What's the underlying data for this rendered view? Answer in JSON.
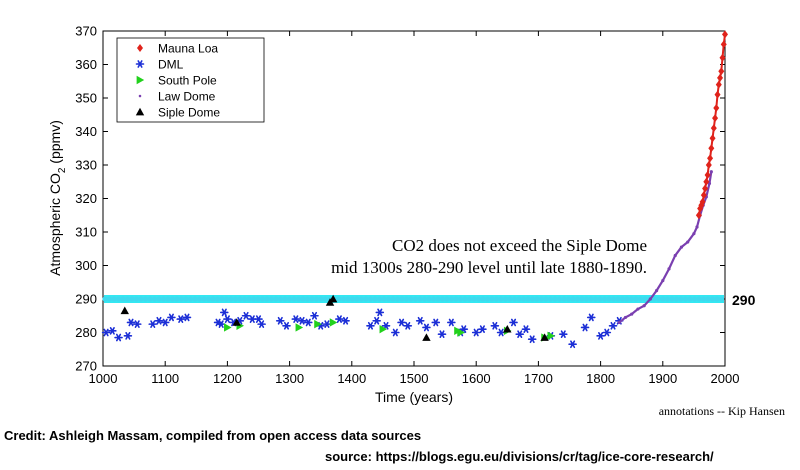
{
  "chart_data": {
    "type": "scatter",
    "ylabel": "Atmospheric CO",
    "ylabel_subscript": "2",
    "ylabel_suffix": " (ppmv)",
    "xlabel": "Time (years)",
    "xlim": [
      1000,
      2000
    ],
    "ylim": [
      270,
      370
    ],
    "xticks": [
      1000,
      1100,
      1200,
      1300,
      1400,
      1500,
      1600,
      1700,
      1800,
      1900,
      2000
    ],
    "yticks": [
      270,
      280,
      290,
      300,
      310,
      320,
      330,
      340,
      350,
      360,
      370
    ],
    "grid": false,
    "legend_placement": "top-left",
    "colors": {
      "mauna_loa": "#e0231b",
      "dml": "#1c2fd6",
      "south_pole": "#22d11c",
      "law_dome": "#7a3fb0",
      "siple_dome": "#000000",
      "reference_line": "#33e8f2"
    },
    "series": [
      {
        "name": "Mauna Loa",
        "marker": "diamond",
        "x": [
          1958,
          1960,
          1962,
          1964,
          1966,
          1968,
          1970,
          1972,
          1974,
          1976,
          1978,
          1980,
          1982,
          1984,
          1986,
          1988,
          1990,
          1992,
          1994,
          1996,
          1998,
          2000
        ],
        "y": [
          315,
          317,
          318,
          319,
          321,
          323,
          325,
          327,
          330,
          332,
          335,
          338,
          341,
          344,
          347,
          351,
          354,
          356,
          358,
          362,
          366,
          369
        ]
      },
      {
        "name": "DML",
        "marker": "asterisk",
        "x": [
          1005,
          1015,
          1025,
          1040,
          1045,
          1055,
          1080,
          1090,
          1100,
          1110,
          1125,
          1135,
          1185,
          1190,
          1195,
          1200,
          1210,
          1220,
          1230,
          1240,
          1250,
          1255,
          1285,
          1295,
          1310,
          1320,
          1330,
          1340,
          1350,
          1360,
          1380,
          1390,
          1430,
          1440,
          1445,
          1455,
          1470,
          1480,
          1490,
          1510,
          1520,
          1535,
          1545,
          1560,
          1575,
          1580,
          1600,
          1610,
          1630,
          1640,
          1660,
          1670,
          1680,
          1690,
          1720,
          1740,
          1755,
          1775,
          1785,
          1800,
          1810,
          1820,
          1830
        ],
        "y": [
          280,
          280.5,
          278.5,
          279,
          283,
          282.5,
          282.5,
          283.5,
          283,
          284.5,
          284,
          284.5,
          283,
          282.5,
          286,
          284,
          283,
          283.5,
          285,
          284,
          284,
          282.5,
          283.5,
          282,
          284,
          283.5,
          283,
          285,
          282,
          282.5,
          284,
          283.5,
          282,
          283.5,
          286,
          282,
          280,
          283,
          282,
          283.5,
          281.5,
          283,
          279.5,
          283,
          280,
          281,
          280,
          281,
          282,
          280,
          283,
          279.5,
          281,
          278,
          279,
          279.5,
          276.5,
          281.5,
          284.5,
          279,
          280,
          282,
          283.5
        ]
      },
      {
        "name": "South Pole",
        "marker": "triangle-right",
        "x": [
          1200,
          1220,
          1315,
          1345,
          1370,
          1450,
          1570,
          1575,
          1650,
          1710,
          1720
        ],
        "y": [
          281.5,
          282,
          281.5,
          282.5,
          283,
          281,
          280.5,
          280,
          280.5,
          278.5,
          279
        ]
      },
      {
        "name": "Law Dome",
        "marker": "dot",
        "x": [
          1830,
          1840,
          1850,
          1860,
          1870,
          1880,
          1890,
          1900,
          1910,
          1920,
          1930,
          1940,
          1950,
          1955,
          1960,
          1965,
          1970,
          1975,
          1978
        ],
        "y": [
          283,
          284.5,
          285.5,
          287,
          288,
          290,
          292.5,
          295.5,
          299,
          303,
          305.5,
          307,
          309.5,
          311.5,
          315,
          318,
          320.5,
          324.5,
          328
        ]
      },
      {
        "name": "Siple Dome",
        "marker": "triangle-up",
        "x": [
          1035,
          1215,
          1365,
          1370,
          1520,
          1650,
          1710
        ],
        "y": [
          286.5,
          283,
          289,
          290,
          278.5,
          281,
          278.5
        ]
      }
    ],
    "reference_line": {
      "y": 290,
      "label": "290"
    },
    "annotation": {
      "line1": "CO2 does not exceed the Siple Dome",
      "line2": "mid 1300s 280-290 level until late 1880-1890."
    },
    "attribution": "annotations -- Kip Hansen"
  },
  "credit": "Credit: Ashleigh Massam, compiled from open access data sources",
  "source": "source:  https://blogs.egu.eu/divisions/cr/tag/ice-core-research/"
}
